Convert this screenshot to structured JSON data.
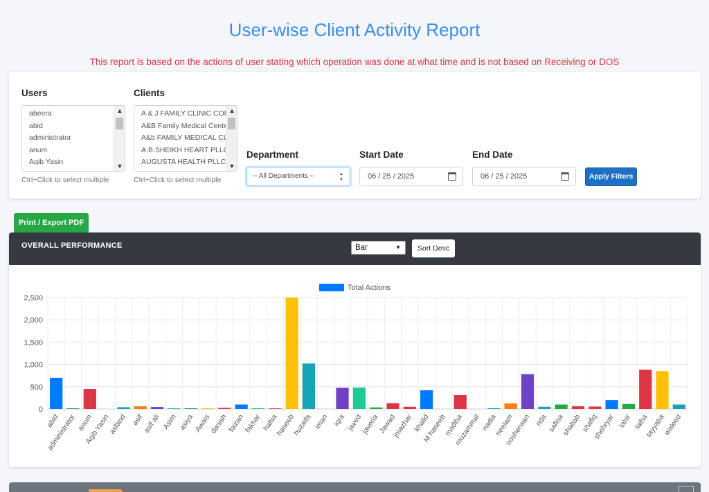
{
  "title": "User-wise Client Activity Report",
  "note": "This report is based on the actions of user stating which operation was done at what time and is not based on Receiving or DOS",
  "filters": {
    "users_label": "Users",
    "users": [
      "abeera",
      "abid",
      "administrator",
      "anum",
      "Aqib Yasin"
    ],
    "clients_label": "Clients",
    "clients": [
      "A & J FAMILY CLINIC CORP",
      "A&B Family Medical Center",
      "A&b FAMILY MEDICAL CLINIC",
      "A.B.SHEIKH HEART PLLC",
      "AUGUSTA HEALTH PLLC"
    ],
    "hint": "Ctrl+Click to select multiple",
    "department_label": "Department",
    "department_value": "-- All Departments --",
    "start_label": "Start Date",
    "start_value": "06 / 25 / 2025",
    "end_label": "End Date",
    "end_value": "06 / 25 / 2025",
    "apply_label": "Apply Filters"
  },
  "export_label": "Print / Export PDF",
  "performance": {
    "title": "OVERALL PERFORMANCE",
    "chart_type_value": "Bar",
    "sort_label": "Sort Desc"
  },
  "chart_data": {
    "type": "bar",
    "legend": "Total Actions",
    "legend_color": "#007bff",
    "ylim": [
      0,
      2500
    ],
    "yticks": [
      0,
      500,
      1000,
      1500,
      2000,
      2500
    ],
    "ytick_labels": [
      "0",
      "500",
      "1,000",
      "1,500",
      "2,000",
      "2,500"
    ],
    "categories": [
      "abid",
      "administrator",
      "anum",
      "Aqib Yasin",
      "asfand",
      "asif",
      "asif ali",
      "Asim",
      "asiya",
      "Awais",
      "danish",
      "faizan",
      "fakhar",
      "hafsa",
      "haseeb",
      "huzaifa",
      "iman",
      "iqra",
      "javed",
      "javeria",
      "Jawad",
      "jmazhar",
      "khalid",
      "M haseeb",
      "madiha",
      "muzammal",
      "nadia",
      "neelam",
      "nosherwan",
      "rida",
      "safina",
      "shabab",
      "shafiq",
      "shehryar",
      "tahir",
      "talha",
      "tayyaba",
      "waleed"
    ],
    "values": [
      700,
      10,
      450,
      0,
      40,
      60,
      45,
      10,
      10,
      10,
      25,
      100,
      10,
      15,
      2500,
      1020,
      0,
      475,
      480,
      35,
      130,
      50,
      420,
      0,
      310,
      0,
      15,
      125,
      780,
      50,
      100,
      60,
      55,
      200,
      110,
      880,
      850,
      100
    ],
    "colors": [
      "#007bff",
      "#28a745",
      "#dc3545",
      "#ffc107",
      "#17a2b8",
      "#fd7e14",
      "#6f42c1",
      "#20c997",
      "#28a745",
      "#ffc107",
      "#dc3545",
      "#007bff",
      "#20c997",
      "#e83e8c",
      "#ffc107",
      "#17a2b8",
      "#fd7e14",
      "#6f42c1",
      "#20c997",
      "#28a745",
      "#dc3545",
      "#dc3545",
      "#007bff",
      "#6c757d",
      "#dc3545",
      "#343a40",
      "#17a2b8",
      "#fd7e14",
      "#6f42c1",
      "#17a2b8",
      "#28a745",
      "#dc3545",
      "#dc3545",
      "#007bff",
      "#28a745",
      "#dc3545",
      "#ffc107",
      "#17a2b8"
    ]
  }
}
